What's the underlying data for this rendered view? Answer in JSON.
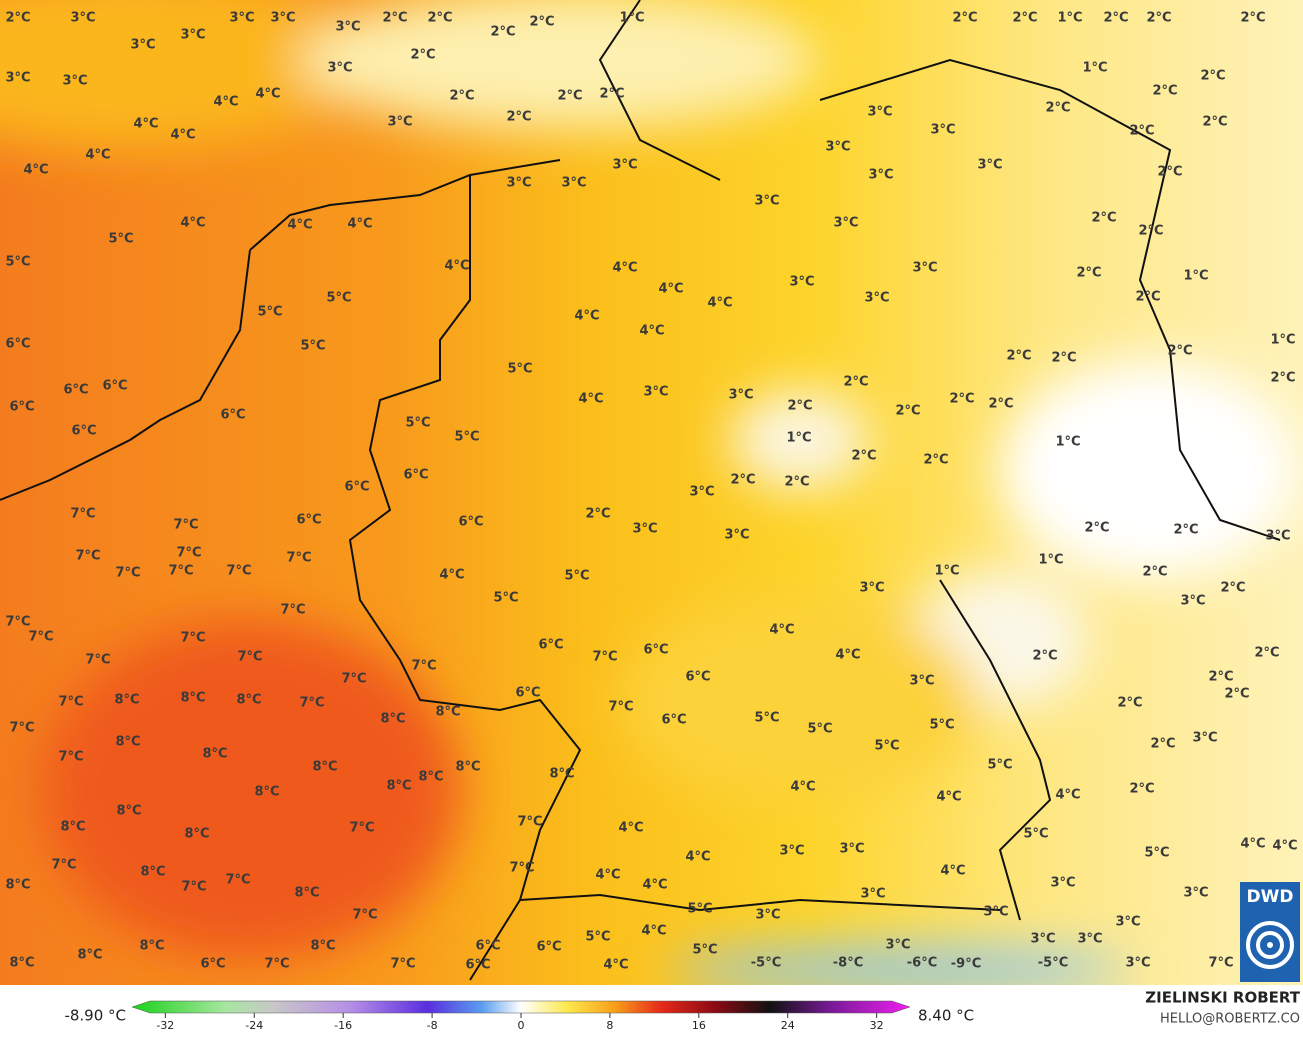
{
  "map": {
    "labels": [
      "2°C",
      "3°C",
      "3°C",
      "3°C",
      "3°C",
      "2°C",
      "2°C",
      "2°C",
      "2°C",
      "1°C",
      "2°C",
      "2°C",
      "1°C",
      "2°C",
      "2°C",
      "2°C",
      "3°C",
      "3°C",
      "2°C",
      "3°C",
      "3°C",
      "3°C",
      "4°C",
      "4°C",
      "2°C",
      "2°C",
      "2°C",
      "2°C",
      "3°C",
      "1°C",
      "2°C",
      "2°C",
      "2°C",
      "2°C",
      "2°C",
      "4°C",
      "4°C",
      "4°C",
      "4°C",
      "3°C",
      "3°C",
      "3°C",
      "3°C",
      "3°C",
      "3°C",
      "3°C",
      "3°C",
      "2°C",
      "3°C",
      "4°C",
      "5°C",
      "4°C",
      "4°C",
      "3°C",
      "2°C",
      "2°C",
      "5°C",
      "4°C",
      "4°C",
      "3°C",
      "2°C",
      "1°C",
      "3°C",
      "4°C",
      "2°C",
      "5°C",
      "5°C",
      "3°C",
      "4°C",
      "4°C",
      "4°C",
      "1°C",
      "6°C",
      "5°C",
      "2°C",
      "2°C",
      "2°C",
      "5°C",
      "2°C",
      "2°C",
      "6°C",
      "6°C",
      "3°C",
      "3°C",
      "4°C",
      "2°C",
      "2°C",
      "6°C",
      "2°C",
      "2°C",
      "6°C",
      "5°C",
      "6°C",
      "5°C",
      "1°C",
      "1°C",
      "2°C",
      "2°C",
      "6°C",
      "2°C",
      "2°C",
      "6°C",
      "3°C",
      "7°C",
      "6°C",
      "7°C",
      "6°C",
      "2°C",
      "3°C",
      "3°C",
      "2°C",
      "2°C",
      "3°C",
      "7°C",
      "7°C",
      "7°C",
      "1°C",
      "7°C",
      "7°C",
      "7°C",
      "1°C",
      "2°C",
      "4°C",
      "5°C",
      "3°C",
      "2°C",
      "5°C",
      "3°C",
      "7°C",
      "7°C",
      "7°C",
      "7°C",
      "4°C",
      "6°C",
      "6°C",
      "2°C",
      "7°C",
      "4°C",
      "2°C",
      "7°C",
      "7°C",
      "7°C",
      "2°C",
      "6°C",
      "7°C",
      "3°C",
      "6°C",
      "2°C",
      "7°C",
      "8°C",
      "8°C",
      "8°C",
      "7°C",
      "2°C",
      "7°C",
      "8°C",
      "8°C",
      "6°C",
      "5°C",
      "5°C",
      "5°C",
      "3°C",
      "8°C",
      "7°C",
      "8°C",
      "5°C",
      "2°C",
      "7°C",
      "8°C",
      "8°C",
      "5°C",
      "8°C",
      "8°C",
      "8°C",
      "8°C",
      "4°C",
      "4°C",
      "2°C",
      "4°C",
      "8°C",
      "7°C",
      "8°C",
      "8°C",
      "7°C",
      "4°C",
      "5°C",
      "3°C",
      "3°C",
      "4°C",
      "4°C",
      "4°C",
      "7°C",
      "5°C",
      "7°C",
      "4°C",
      "8°C",
      "8°C",
      "7°C",
      "7°C",
      "4°C",
      "4°C",
      "3°C",
      "3°C",
      "3°C",
      "8°C",
      "5°C",
      "3°C",
      "3°C",
      "3°C",
      "7°C",
      "4°C",
      "5°C",
      "3°C",
      "3°C",
      "8°C",
      "6°C",
      "8°C",
      "6°C",
      "3°C",
      "5°C",
      "8°C",
      "8°C",
      "6°C",
      "7°C",
      "7°C",
      "6°C",
      "4°C",
      "-5°C",
      "-8°C",
      "-6°C",
      "-9°C",
      "-5°C",
      "3°C",
      "7°C"
    ],
    "legend": {
      "min_label": "-8.90 °C",
      "max_label": "8.40 °C",
      "xlim": [
        -35,
        35
      ],
      "xticks": [
        -32,
        -24,
        -16,
        -8,
        0,
        8,
        16,
        24,
        32
      ]
    },
    "credit": {
      "name": "ZIELINSKI ROBERT",
      "email": "HELLO@ROBERTZ.CO"
    },
    "logo": "DWD"
  }
}
